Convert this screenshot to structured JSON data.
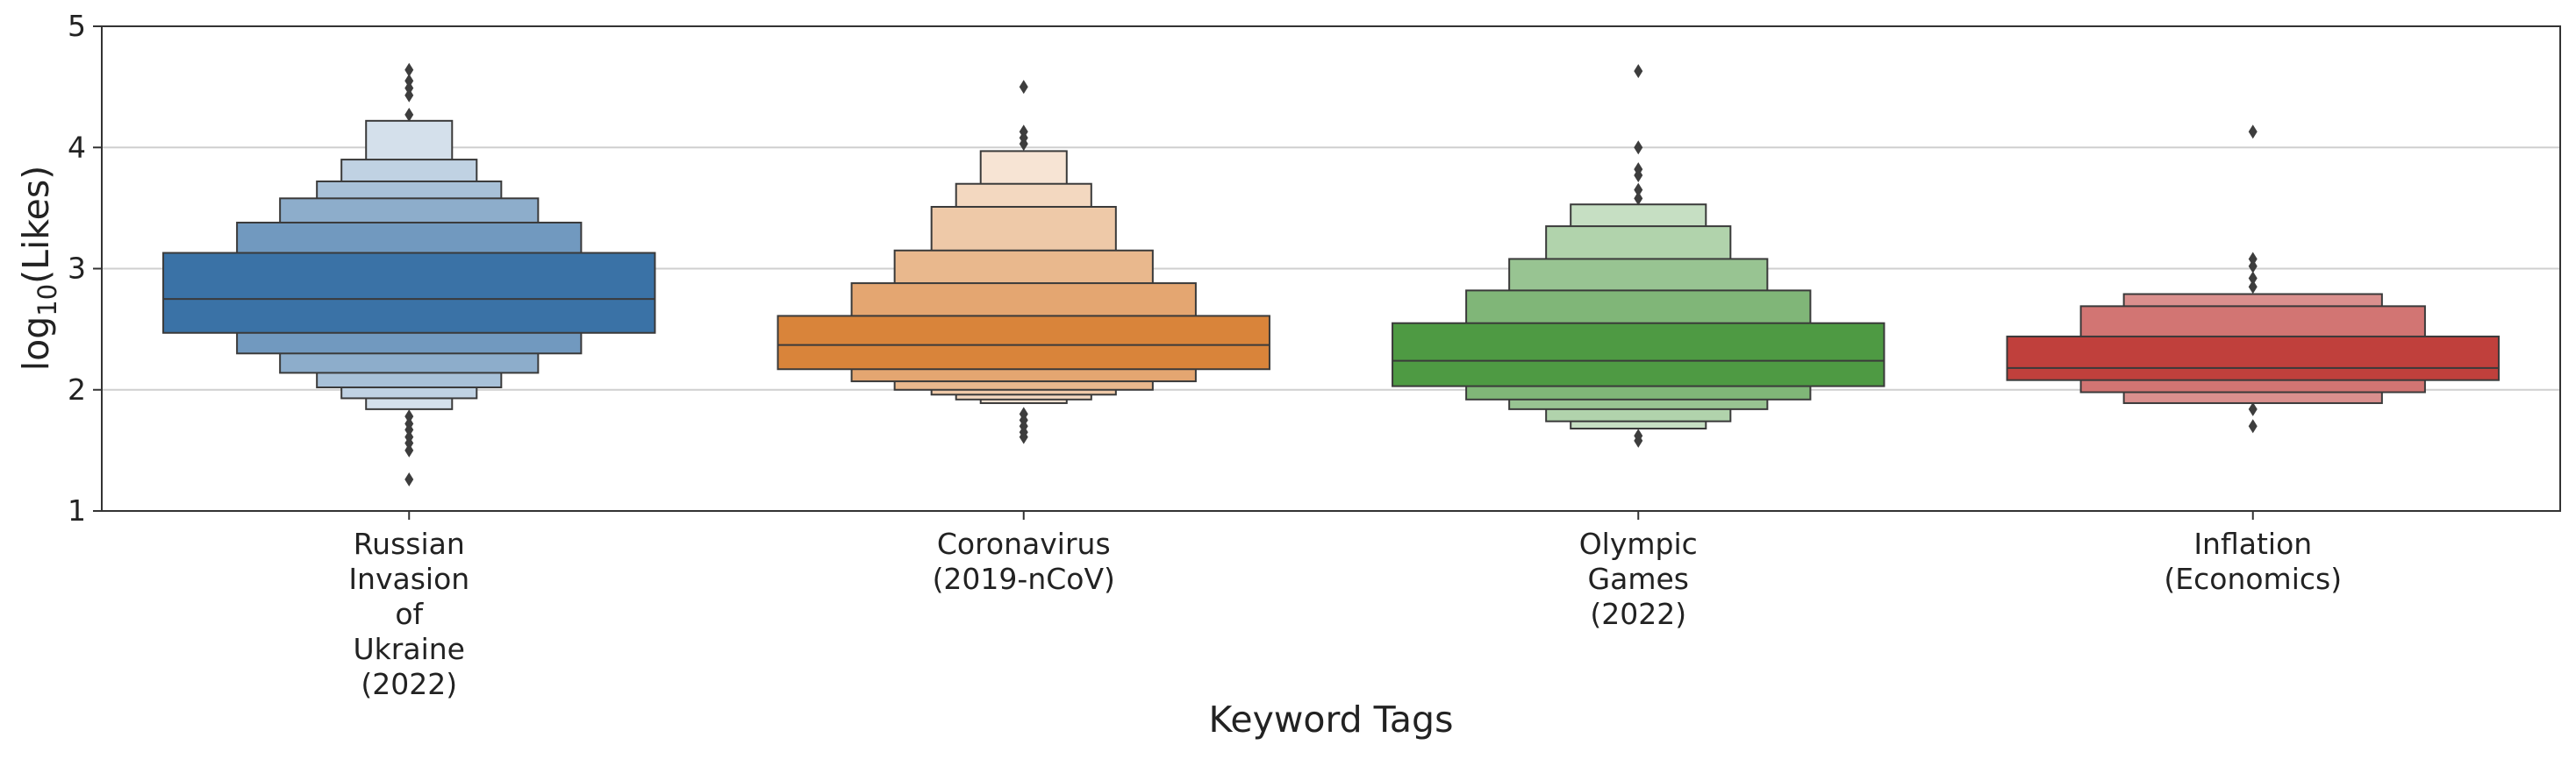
{
  "chart_data": {
    "type": "boxen",
    "title": "",
    "xlabel": "Keyword Tags",
    "ylabel_base": "log",
    "ylabel_sub": "10",
    "ylabel_tail": "(Likes)",
    "ylim": [
      1,
      5
    ],
    "yticks": [
      1,
      2,
      3,
      4,
      5
    ],
    "grid": "horizontal",
    "categories": [
      {
        "lines": [
          "Russian",
          "Invasion",
          "of",
          "Ukraine",
          "(2022)"
        ],
        "color": "#3a72a6",
        "median": 2.75,
        "boxes": [
          [
            2.47,
            3.13
          ],
          [
            2.3,
            3.38
          ],
          [
            2.14,
            3.58
          ],
          [
            2.02,
            3.72
          ],
          [
            1.93,
            3.9
          ],
          [
            1.84,
            4.22
          ]
        ],
        "outliers": [
          1.78,
          1.72,
          1.67,
          1.61,
          1.56,
          1.5,
          1.26,
          4.27,
          4.43,
          4.49,
          4.55,
          4.64
        ]
      },
      {
        "lines": [
          "Coronavirus",
          "(2019-nCoV)"
        ],
        "color": "#d9843a",
        "median": 2.37,
        "boxes": [
          [
            2.17,
            2.61
          ],
          [
            2.07,
            2.88
          ],
          [
            2.0,
            3.15
          ],
          [
            1.96,
            3.51
          ],
          [
            1.92,
            3.7
          ],
          [
            1.89,
            3.97
          ]
        ],
        "outliers": [
          1.8,
          1.75,
          1.7,
          1.65,
          1.61,
          4.03,
          4.08,
          4.13,
          4.5
        ]
      },
      {
        "lines": [
          "Olympic",
          "Games",
          "(2022)"
        ],
        "color": "#4e9a43",
        "median": 2.24,
        "boxes": [
          [
            2.03,
            2.55
          ],
          [
            1.92,
            2.82
          ],
          [
            1.84,
            3.08
          ],
          [
            1.74,
            3.35
          ],
          [
            1.68,
            3.53
          ]
        ],
        "outliers": [
          1.62,
          1.58,
          3.58,
          3.65,
          3.77,
          3.82,
          4.0,
          4.63
        ]
      },
      {
        "lines": [
          "Inflation",
          "(Economics)"
        ],
        "color": "#c0403c",
        "median": 2.18,
        "boxes": [
          [
            2.08,
            2.44
          ],
          [
            1.98,
            2.69
          ],
          [
            1.89,
            2.79
          ]
        ],
        "outliers": [
          1.84,
          1.7,
          2.85,
          2.92,
          3.02,
          3.08,
          4.13
        ]
      }
    ]
  }
}
